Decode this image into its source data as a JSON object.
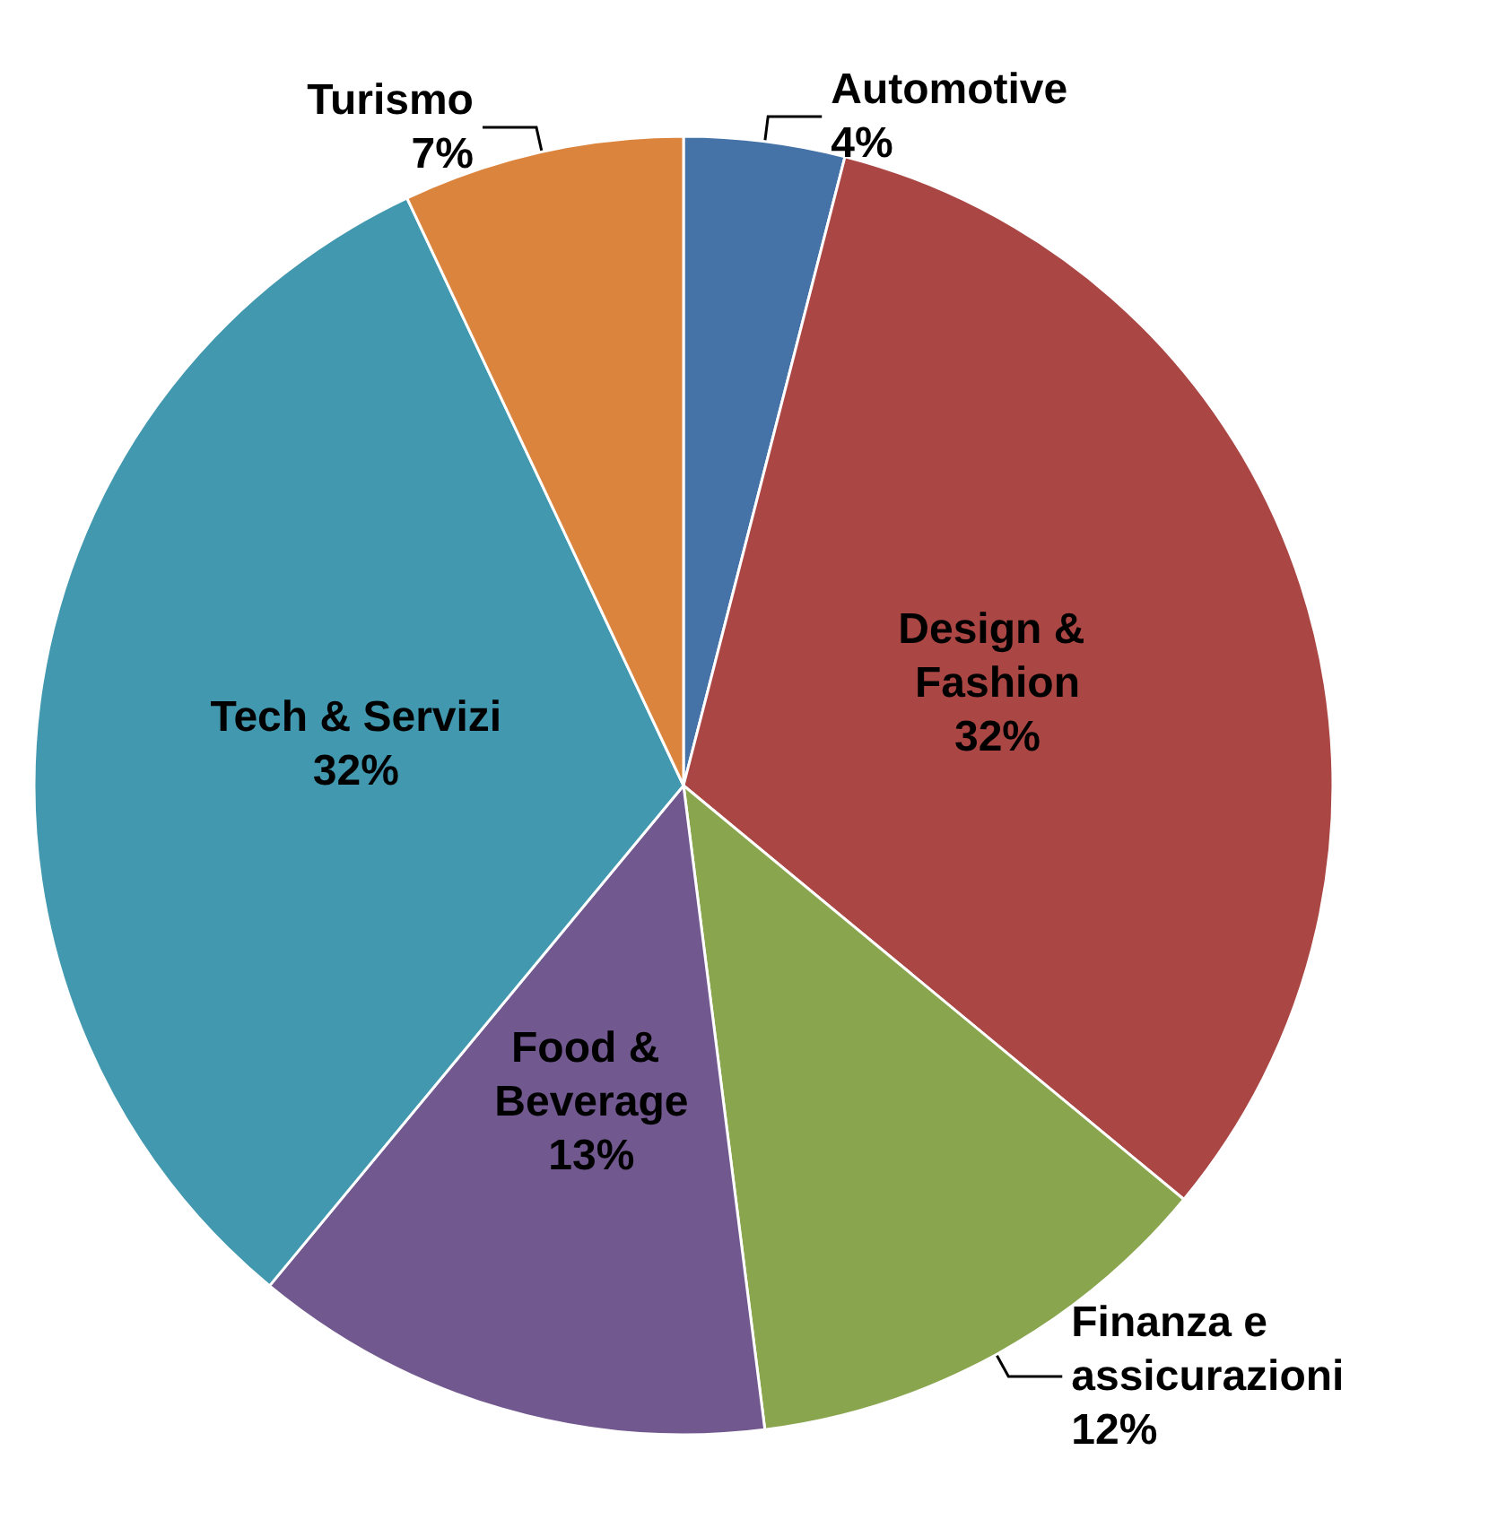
{
  "chart_data": {
    "type": "pie",
    "categories": [
      "Automotive",
      "Design & Fashion",
      "Finanza e assicurazioni",
      "Food & Beverage",
      "Tech & Servizi",
      "Turismo"
    ],
    "values": [
      4,
      32,
      12,
      13,
      32,
      7
    ],
    "value_labels": [
      "4%",
      "32%",
      "12%",
      "13%",
      "32%",
      "7%"
    ],
    "colors": [
      "#4572a7",
      "#aa4643",
      "#89a54e",
      "#71588f",
      "#4198af",
      "#db843d"
    ],
    "legend": false
  }
}
